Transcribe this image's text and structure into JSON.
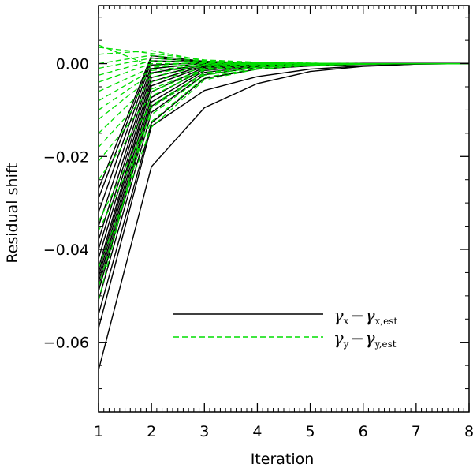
{
  "chart_data": {
    "type": "line",
    "xlabel": "Iteration",
    "ylabel": "Residual shift",
    "xlim": [
      1,
      8
    ],
    "ylim": [
      -0.075,
      0.0125
    ],
    "x_ticks": [
      1,
      2,
      3,
      4,
      5,
      6,
      7,
      8
    ],
    "x_tick_labels": [
      "1",
      "2",
      "3",
      "4",
      "5",
      "6",
      "7",
      "8"
    ],
    "y_ticks": [
      0.0,
      -0.02,
      -0.04,
      -0.06
    ],
    "y_tick_labels": [
      "0.00",
      "−0.02",
      "−0.04",
      "−0.06"
    ],
    "x": [
      1,
      2,
      3,
      4,
      5,
      6,
      7,
      8
    ],
    "groups": [
      {
        "name": "gamma_x",
        "color": "#000000",
        "dash": "solid",
        "legend": {
          "main1": "γ",
          "sub1": "x",
          "op": "−",
          "main2": "γ",
          "sub2": "x,est"
        },
        "series": [
          [
            -0.066,
            -0.0222,
            -0.0095,
            -0.0043,
            -0.0017,
            -0.0006,
            -0.0001,
            0.0
          ],
          [
            -0.057,
            -0.0135,
            -0.0058,
            -0.0028,
            -0.0012,
            -0.0005,
            -0.0001,
            0.0
          ],
          [
            -0.054,
            -0.0128,
            -0.0032,
            -0.0012,
            -0.0005,
            -0.0002,
            0.0,
            0.0
          ],
          [
            -0.051,
            -0.0105,
            -0.0024,
            -0.0008,
            -0.0003,
            -0.0001,
            0.0,
            0.0
          ],
          [
            -0.049,
            -0.0092,
            -0.0019,
            -0.0006,
            -0.0002,
            -0.0001,
            0.0,
            0.0
          ],
          [
            -0.048,
            -0.0083,
            -0.0015,
            -0.0004,
            -0.0001,
            0.0,
            0.0,
            0.0
          ],
          [
            -0.047,
            -0.0073,
            -0.0011,
            -0.0003,
            -0.0001,
            0.0,
            0.0,
            0.0
          ],
          [
            -0.046,
            -0.0061,
            -0.0008,
            -0.0002,
            0.0,
            0.0,
            0.0,
            0.0
          ],
          [
            -0.045,
            -0.0048,
            -0.0006,
            -0.0001,
            0.0,
            0.0,
            0.0,
            0.0
          ],
          [
            -0.044,
            -0.0039,
            -0.0004,
            -0.0001,
            0.0,
            0.0,
            0.0,
            0.0
          ],
          [
            -0.042,
            -0.003,
            -0.0002,
            0.0,
            0.0,
            0.0,
            0.0,
            0.0
          ],
          [
            -0.04,
            -0.002,
            -0.0001,
            0.0,
            0.0,
            0.0,
            0.0,
            0.0
          ],
          [
            -0.038,
            -0.0011,
            0.0001,
            0.0,
            0.0,
            0.0,
            0.0,
            0.0
          ],
          [
            -0.035,
            -0.0003,
            0.0002,
            0.0,
            0.0,
            0.0,
            0.0,
            0.0
          ],
          [
            -0.032,
            0.0006,
            0.0003,
            0.0001,
            0.0,
            0.0,
            0.0,
            0.0
          ],
          [
            -0.029,
            0.0012,
            0.0004,
            0.0001,
            0.0,
            0.0,
            0.0,
            0.0
          ],
          [
            -0.027,
            0.0017,
            0.0005,
            0.0001,
            0.0,
            0.0,
            0.0,
            0.0
          ]
        ]
      },
      {
        "name": "gamma_y",
        "color": "#00dd00",
        "dash": "dashed",
        "legend": {
          "main1": "γ",
          "sub1": "y",
          "op": "−",
          "main2": "γ",
          "sub2": "y,est"
        },
        "series": [
          [
            0.004,
            -0.0005,
            0.0004,
            0.0002,
            0.0001,
            0.0,
            0.0,
            0.0
          ],
          [
            0.0035,
            0.0022,
            0.0008,
            0.0003,
            0.0001,
            0.0,
            0.0,
            0.0
          ],
          [
            0.002,
            0.0028,
            0.0006,
            0.0002,
            0.0001,
            0.0,
            0.0,
            0.0
          ],
          [
            0.0,
            0.0018,
            0.0005,
            0.0002,
            0.0001,
            0.0,
            0.0,
            0.0
          ],
          [
            -0.001,
            0.0012,
            0.0003,
            0.0001,
            0.0,
            0.0,
            0.0,
            0.0
          ],
          [
            -0.0025,
            0.0006,
            0.0002,
            0.0001,
            0.0,
            0.0,
            0.0,
            0.0
          ],
          [
            -0.004,
            0.0,
            0.0001,
            0.0,
            0.0,
            0.0,
            0.0,
            0.0
          ],
          [
            -0.006,
            -0.0008,
            0.0,
            0.0,
            0.0,
            0.0,
            0.0,
            0.0
          ],
          [
            -0.008,
            -0.0015,
            -0.0002,
            0.0,
            0.0,
            0.0,
            0.0,
            0.0
          ],
          [
            -0.01,
            -0.0022,
            -0.0003,
            -0.0001,
            0.0,
            0.0,
            0.0,
            0.0
          ],
          [
            -0.012,
            -0.003,
            -0.0005,
            -0.0001,
            0.0,
            0.0,
            0.0,
            0.0
          ],
          [
            -0.015,
            -0.004,
            -0.0008,
            -0.0002,
            0.0,
            0.0,
            0.0,
            0.0
          ],
          [
            -0.018,
            -0.0055,
            -0.0011,
            -0.0003,
            -0.0001,
            0.0,
            0.0,
            0.0
          ],
          [
            -0.021,
            -0.007,
            -0.0014,
            -0.0004,
            -0.0001,
            0.0,
            0.0,
            0.0
          ],
          [
            -0.025,
            -0.009,
            -0.002,
            -0.0006,
            -0.0002,
            0.0,
            0.0,
            0.0
          ],
          [
            -0.034,
            -0.011,
            -0.0025,
            -0.0008,
            -0.0002,
            -0.0001,
            0.0,
            0.0
          ],
          [
            -0.036,
            -0.0125,
            -0.003,
            -0.001,
            -0.0003,
            -0.0001,
            0.0,
            0.0
          ],
          [
            -0.044,
            -0.0137,
            -0.0035,
            -0.0012,
            -0.0004,
            -0.0001,
            0.0,
            0.0
          ],
          [
            -0.048,
            -0.0095,
            -0.0022,
            -0.0007,
            -0.0002,
            -0.0001,
            0.0,
            0.0
          ],
          [
            -0.051,
            -0.006,
            -0.0013,
            -0.0004,
            -0.0001,
            0.0,
            0.0,
            0.0
          ]
        ]
      }
    ],
    "legend_position": "lower-right"
  }
}
